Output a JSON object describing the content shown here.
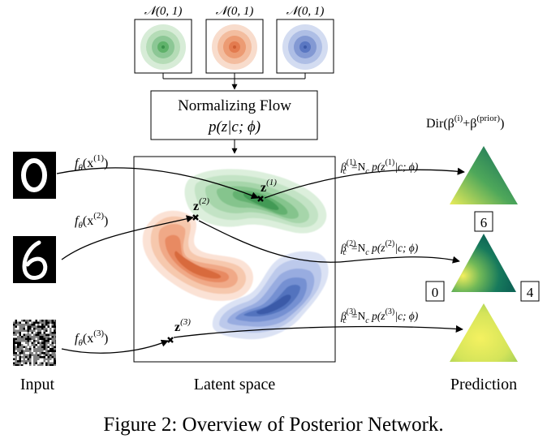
{
  "priors": [
    {
      "label": "𝒩(0, 1)",
      "color": "#5fb26a"
    },
    {
      "label": "𝒩(0, 1)",
      "color": "#e0794f"
    },
    {
      "label": "𝒩(0, 1)",
      "color": "#5876c4"
    }
  ],
  "flow": {
    "title": "Normalizing Flow",
    "formula": "p(z|c; ϕ)"
  },
  "dirichlet_label": "Dir(β",
  "dirichlet_sup_i": "(i)",
  "dirichlet_plus": "+β",
  "dirichlet_sup_prior": "(prior)",
  "dirichlet_close": ")",
  "encoders": [
    {
      "f": "f",
      "theta": "θ",
      "arg": "(x",
      "sup": "(1)",
      "close": ")"
    },
    {
      "f": "f",
      "theta": "θ",
      "arg": "(x",
      "sup": "(2)",
      "close": ")"
    },
    {
      "f": "f",
      "theta": "θ",
      "arg": "(x",
      "sup": "(3)",
      "close": ")"
    }
  ],
  "latents": [
    {
      "z": "z",
      "sup": "(1)"
    },
    {
      "z": "z",
      "sup": "(2)"
    },
    {
      "z": "z",
      "sup": "(3)"
    }
  ],
  "betas": [
    {
      "beta": "β",
      "sub": "c",
      "sup": "(1)",
      "rhs_a": "=N",
      "rhs_sub": "c",
      "rhs_b": " p(z",
      "rhs_sup": "(1)",
      "rhs_c": "|c; ϕ)"
    },
    {
      "beta": "β",
      "sub": "c",
      "sup": "(2)",
      "rhs_a": "=N",
      "rhs_sub": "c",
      "rhs_b": " p(z",
      "rhs_sup": "(2)",
      "rhs_c": "|c; ϕ)"
    },
    {
      "beta": "β",
      "sub": "c",
      "sup": "(3)",
      "rhs_a": "=N",
      "rhs_sub": "c",
      "rhs_b": " p(z",
      "rhs_sup": "(3)",
      "rhs_c": "|c; ϕ)"
    }
  ],
  "corner_labels": {
    "top": "6",
    "left": "0",
    "right": "4"
  },
  "section_labels": {
    "input": "Input",
    "latent": "Latent space",
    "prediction": "Prediction"
  },
  "caption": "Figure 2: Overview of Posterior Network.",
  "colors": {
    "green": "#3e9a55",
    "orange": "#e07445",
    "blue": "#4b6cb7",
    "triangle_dark": "#0f6a5a",
    "triangle_light": "#f2ee5a"
  }
}
